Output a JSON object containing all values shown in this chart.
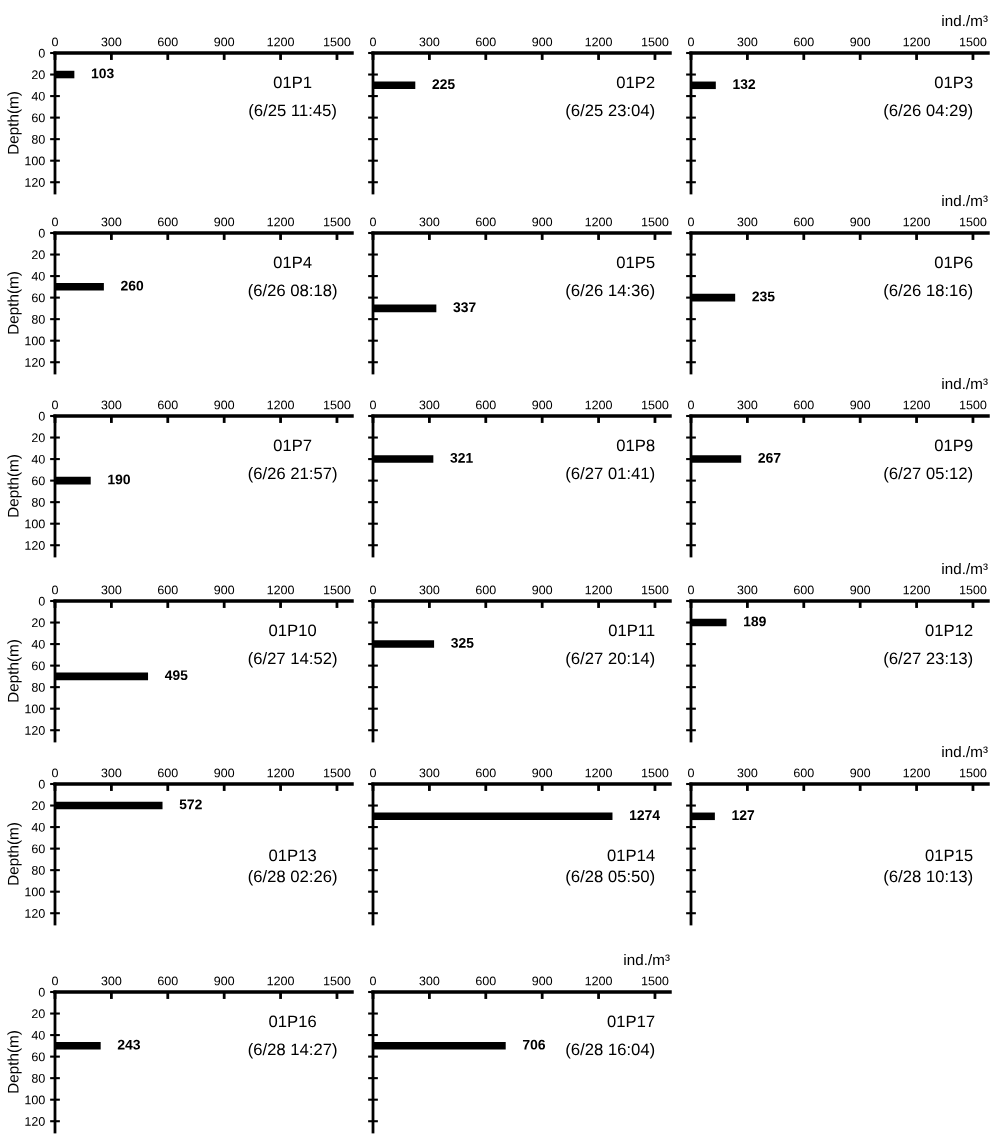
{
  "chart_data": [
    {
      "type": "bar",
      "orientation": "horizontal",
      "x": [
        20
      ],
      "values": [
        103
      ],
      "color": "#000000",
      "xlim": [
        0,
        1580
      ],
      "xticks": [
        0,
        300,
        600,
        900,
        1200,
        1500
      ],
      "ylim": [
        130,
        0
      ],
      "yticks": [
        0,
        20,
        40,
        60,
        80,
        100,
        120
      ],
      "ylabel": "Depth(m)",
      "data_labels": true,
      "annotations": [
        "01P1",
        "(6/25 11:45)"
      ]
    },
    {
      "type": "bar",
      "orientation": "horizontal",
      "x": [
        30
      ],
      "values": [
        225
      ],
      "color": "#000000",
      "xlim": [
        0,
        1580
      ],
      "xticks": [
        0,
        300,
        600,
        900,
        1200,
        1500
      ],
      "ylim": [
        130,
        0
      ],
      "yticks": [
        0,
        20,
        40,
        60,
        80,
        100,
        120
      ],
      "tick_labels": "x",
      "data_labels": true,
      "annotations": [
        "01P2",
        "(6/25 23:04)"
      ]
    },
    {
      "type": "bar",
      "orientation": "horizontal",
      "x": [
        30
      ],
      "values": [
        132
      ],
      "color": "#000000",
      "xlim": [
        0,
        1580
      ],
      "xticks": [
        0,
        300,
        600,
        900,
        1200,
        1500
      ],
      "ylim": [
        130,
        0
      ],
      "yticks": [
        0,
        20,
        40,
        60,
        80,
        100,
        120
      ],
      "tick_labels": "x",
      "xlabel": "ind./m³",
      "data_labels": true,
      "annotations": [
        "01P3",
        "(6/26 04:29)"
      ]
    },
    {
      "type": "bar",
      "orientation": "horizontal",
      "x": [
        50
      ],
      "values": [
        260
      ],
      "color": "#000000",
      "xlim": [
        0,
        1580
      ],
      "xticks": [
        0,
        300,
        600,
        900,
        1200,
        1500
      ],
      "ylim": [
        130,
        0
      ],
      "yticks": [
        0,
        20,
        40,
        60,
        80,
        100,
        120
      ],
      "ylabel": "Depth(m)",
      "data_labels": true,
      "annotations": [
        "01P4",
        "(6/26 08:18)"
      ]
    },
    {
      "type": "bar",
      "orientation": "horizontal",
      "x": [
        70
      ],
      "values": [
        337
      ],
      "color": "#000000",
      "xlim": [
        0,
        1580
      ],
      "xticks": [
        0,
        300,
        600,
        900,
        1200,
        1500
      ],
      "ylim": [
        130,
        0
      ],
      "yticks": [
        0,
        20,
        40,
        60,
        80,
        100,
        120
      ],
      "tick_labels": "x",
      "data_labels": true,
      "annotations": [
        "01P5",
        "(6/26 14:36)"
      ]
    },
    {
      "type": "bar",
      "orientation": "horizontal",
      "x": [
        60
      ],
      "values": [
        235
      ],
      "color": "#000000",
      "xlim": [
        0,
        1580
      ],
      "xticks": [
        0,
        300,
        600,
        900,
        1200,
        1500
      ],
      "ylim": [
        130,
        0
      ],
      "yticks": [
        0,
        20,
        40,
        60,
        80,
        100,
        120
      ],
      "tick_labels": "x",
      "xlabel": "ind./m³",
      "data_labels": true,
      "annotations": [
        "01P6",
        "(6/26 18:16)"
      ]
    },
    {
      "type": "bar",
      "orientation": "horizontal",
      "x": [
        60
      ],
      "values": [
        190
      ],
      "color": "#000000",
      "xlim": [
        0,
        1580
      ],
      "xticks": [
        0,
        300,
        600,
        900,
        1200,
        1500
      ],
      "ylim": [
        130,
        0
      ],
      "yticks": [
        0,
        20,
        40,
        60,
        80,
        100,
        120
      ],
      "ylabel": "Depth(m)",
      "data_labels": true,
      "annotations": [
        "01P7",
        "(6/26 21:57)"
      ]
    },
    {
      "type": "bar",
      "orientation": "horizontal",
      "x": [
        40
      ],
      "values": [
        321
      ],
      "color": "#000000",
      "xlim": [
        0,
        1580
      ],
      "xticks": [
        0,
        300,
        600,
        900,
        1200,
        1500
      ],
      "ylim": [
        130,
        0
      ],
      "yticks": [
        0,
        20,
        40,
        60,
        80,
        100,
        120
      ],
      "tick_labels": "x",
      "data_labels": true,
      "annotations": [
        "01P8",
        "(6/27 01:41)"
      ]
    },
    {
      "type": "bar",
      "orientation": "horizontal",
      "x": [
        40
      ],
      "values": [
        267
      ],
      "color": "#000000",
      "xlim": [
        0,
        1580
      ],
      "xticks": [
        0,
        300,
        600,
        900,
        1200,
        1500
      ],
      "ylim": [
        130,
        0
      ],
      "yticks": [
        0,
        20,
        40,
        60,
        80,
        100,
        120
      ],
      "tick_labels": "x",
      "xlabel": "ind./m³",
      "data_labels": true,
      "annotations": [
        "01P9",
        "(6/27 05:12)"
      ]
    },
    {
      "type": "bar",
      "orientation": "horizontal",
      "x": [
        70
      ],
      "values": [
        495
      ],
      "color": "#000000",
      "xlim": [
        0,
        1580
      ],
      "xticks": [
        0,
        300,
        600,
        900,
        1200,
        1500
      ],
      "ylim": [
        130,
        0
      ],
      "yticks": [
        0,
        20,
        40,
        60,
        80,
        100,
        120
      ],
      "ylabel": "Depth(m)",
      "data_labels": true,
      "annotations": [
        "01P10",
        "(6/27 14:52)"
      ]
    },
    {
      "type": "bar",
      "orientation": "horizontal",
      "x": [
        40
      ],
      "values": [
        325
      ],
      "color": "#000000",
      "xlim": [
        0,
        1580
      ],
      "xticks": [
        0,
        300,
        600,
        900,
        1200,
        1500
      ],
      "ylim": [
        130,
        0
      ],
      "yticks": [
        0,
        20,
        40,
        60,
        80,
        100,
        120
      ],
      "tick_labels": "x",
      "data_labels": true,
      "annotations": [
        "01P11",
        "(6/27 20:14)"
      ]
    },
    {
      "type": "bar",
      "orientation": "horizontal",
      "x": [
        20
      ],
      "values": [
        189
      ],
      "color": "#000000",
      "xlim": [
        0,
        1580
      ],
      "xticks": [
        0,
        300,
        600,
        900,
        1200,
        1500
      ],
      "ylim": [
        130,
        0
      ],
      "yticks": [
        0,
        20,
        40,
        60,
        80,
        100,
        120
      ],
      "tick_labels": "x",
      "xlabel": "ind./m³",
      "data_labels": true,
      "annotations": [
        "01P12",
        "(6/27 23:13)"
      ]
    },
    {
      "type": "bar",
      "orientation": "horizontal",
      "x": [
        20
      ],
      "values": [
        572
      ],
      "color": "#000000",
      "xlim": [
        0,
        1580
      ],
      "xticks": [
        0,
        300,
        600,
        900,
        1200,
        1500
      ],
      "ylim": [
        130,
        0
      ],
      "yticks": [
        0,
        20,
        40,
        60,
        80,
        100,
        120
      ],
      "ylabel": "Depth(m)",
      "data_labels": true,
      "annotations": [
        "01P13",
        "(6/28 02:26)"
      ]
    },
    {
      "type": "bar",
      "orientation": "horizontal",
      "x": [
        30
      ],
      "values": [
        1274
      ],
      "color": "#000000",
      "xlim": [
        0,
        1580
      ],
      "xticks": [
        0,
        300,
        600,
        900,
        1200,
        1500
      ],
      "ylim": [
        130,
        0
      ],
      "yticks": [
        0,
        20,
        40,
        60,
        80,
        100,
        120
      ],
      "tick_labels": "x",
      "data_labels": true,
      "annotations": [
        "01P14",
        "(6/28 05:50)"
      ]
    },
    {
      "type": "bar",
      "orientation": "horizontal",
      "x": [
        30
      ],
      "values": [
        127
      ],
      "color": "#000000",
      "xlim": [
        0,
        1580
      ],
      "xticks": [
        0,
        300,
        600,
        900,
        1200,
        1500
      ],
      "ylim": [
        130,
        0
      ],
      "yticks": [
        0,
        20,
        40,
        60,
        80,
        100,
        120
      ],
      "tick_labels": "x",
      "xlabel": "ind./m³",
      "data_labels": true,
      "annotations": [
        "01P15",
        "(6/28 10:13)"
      ]
    },
    {
      "type": "bar",
      "orientation": "horizontal",
      "x": [
        50
      ],
      "values": [
        243
      ],
      "color": "#000000",
      "xlim": [
        0,
        1580
      ],
      "xticks": [
        0,
        300,
        600,
        900,
        1200,
        1500
      ],
      "ylim": [
        130,
        0
      ],
      "yticks": [
        0,
        20,
        40,
        60,
        80,
        100,
        120
      ],
      "ylabel": "Depth(m)",
      "data_labels": true,
      "annotations": [
        "01P16",
        "(6/28 14:27)"
      ]
    },
    {
      "type": "bar",
      "orientation": "horizontal",
      "x": [
        50
      ],
      "values": [
        706
      ],
      "color": "#000000",
      "xlim": [
        0,
        1580
      ],
      "xticks": [
        0,
        300,
        600,
        900,
        1200,
        1500
      ],
      "ylim": [
        130,
        0
      ],
      "yticks": [
        0,
        20,
        40,
        60,
        80,
        100,
        120
      ],
      "tick_labels": "x",
      "xlabel": "ind./m³",
      "data_labels": true,
      "annotations": [
        "01P17",
        "(6/28 16:04)"
      ]
    }
  ]
}
